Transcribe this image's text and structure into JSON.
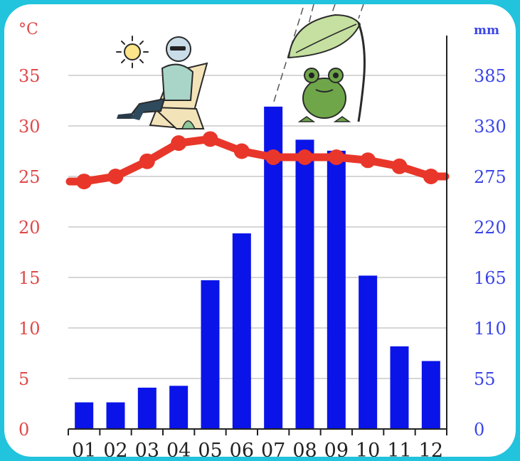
{
  "chart_data": {
    "type": "bar",
    "categories": [
      "01",
      "02",
      "03",
      "04",
      "05",
      "06",
      "07",
      "08",
      "09",
      "10",
      "11",
      "12"
    ],
    "series": [
      {
        "type": "bar",
        "axis": "right",
        "color": "#0a14e8",
        "values": [
          29,
          29,
          45,
          47,
          162,
          213,
          351,
          315,
          303,
          167,
          90,
          74
        ]
      },
      {
        "type": "line",
        "axis": "left",
        "color": "#e8372a",
        "values": [
          24.5,
          25.0,
          26.5,
          28.3,
          28.7,
          27.5,
          26.9,
          26.9,
          26.9,
          26.6,
          26.0,
          25.0
        ]
      }
    ],
    "y_left": {
      "unit": "°C",
      "ticks": [
        "0",
        "5",
        "10",
        "15",
        "20",
        "25",
        "30",
        "35"
      ],
      "range": [
        0,
        35
      ],
      "color": "#e04848"
    },
    "y_right": {
      "unit": "mm",
      "ticks": [
        "0",
        "55",
        "110",
        "165",
        "220",
        "275",
        "330",
        "385"
      ],
      "range": [
        0,
        385
      ],
      "color": "#3a45e8"
    },
    "grid": true,
    "decorations": [
      "person-in-lounge-chair-with-sun-icon",
      "frog-under-leaf-in-rain-icon"
    ]
  }
}
